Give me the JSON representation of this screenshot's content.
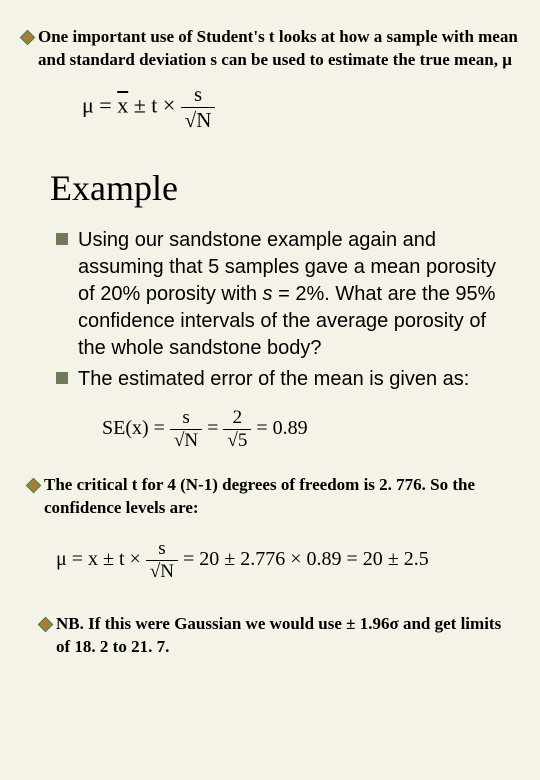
{
  "top": {
    "text": "One important use of Student's t looks at how a sample with mean and standard deviation s can be used to estimate the true mean, μ"
  },
  "formula_top": {
    "lhs": "μ = ",
    "xbar": "x",
    "mid": " ± t × ",
    "frac_num": "s",
    "frac_den": "√N"
  },
  "heading": "Example",
  "item1": {
    "text": "Using our sandstone example again and assuming that 5 samples gave a mean porosity of 20% porosity with s = 2%. What are the 95% confidence intervals of the average porosity of the whole sandstone body?"
  },
  "item2": {
    "text": "The estimated error of the mean is given as:"
  },
  "se_formula": {
    "lhs": "SE(",
    "xbar": "x",
    "rhs1": ") = ",
    "f1_num": "s",
    "f1_den": "√N",
    "eq": " = ",
    "f2_num": "2",
    "f2_den": "√5",
    "result": " = 0.89"
  },
  "critical": {
    "text": "The critical t for 4 (N-1) degrees of freedom is 2. 776. So the confidence levels are:"
  },
  "mu_formula": {
    "lhs": "μ = ",
    "xbar": "x",
    "mid": " ± t × ",
    "frac_num": "s",
    "frac_den": "√N",
    "rest": " = 20 ± 2.776 × 0.89 = 20 ± 2.5"
  },
  "nb": {
    "text": "NB. If this were Gaussian we would use ± 1.96σ and get limits of 18. 2 to 21. 7."
  },
  "colors": {
    "background": "#f5f2e8",
    "diamond_border": "#2a7a2a",
    "diamond_fill": "#a97a3a",
    "square_fill": "#6f7a5a",
    "text": "#000000"
  }
}
